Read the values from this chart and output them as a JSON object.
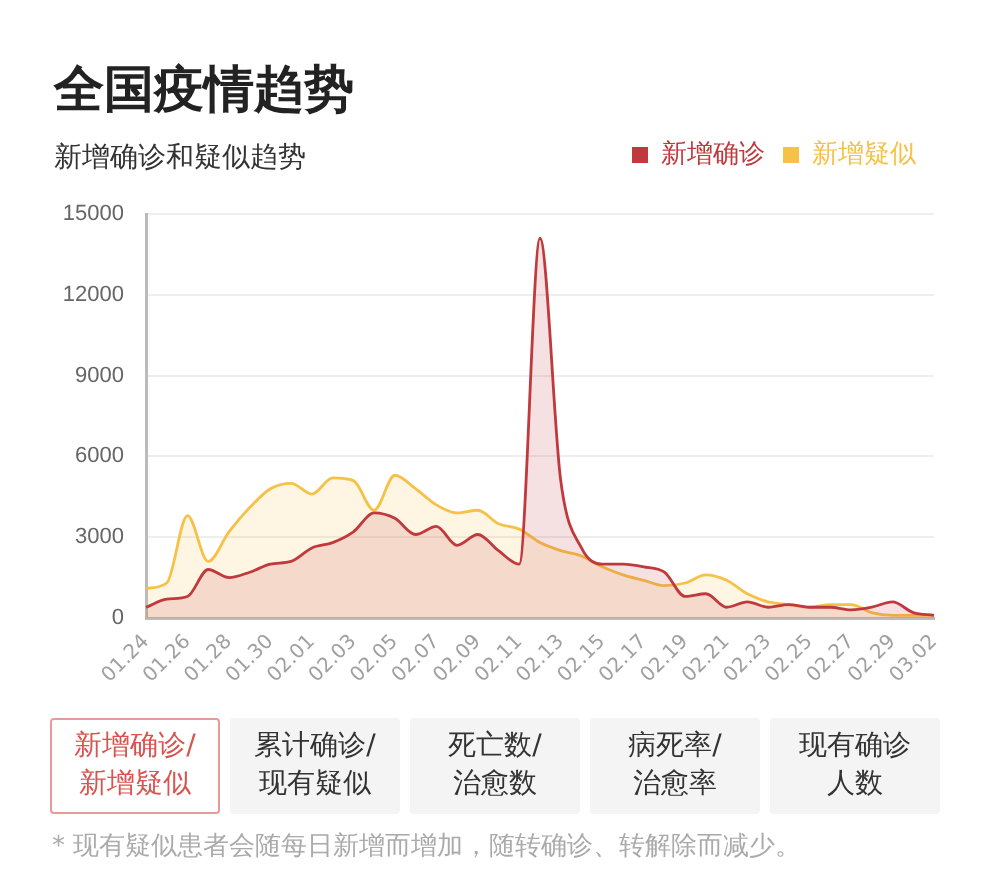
{
  "chart_data": {
    "type": "area",
    "title": "全国疫情趋势",
    "subtitle": "新增确诊和疑似趋势",
    "categories": [
      "01.24",
      null,
      "01.26",
      null,
      "01.28",
      null,
      "01.30",
      null,
      "02.01",
      null,
      "02.03",
      null,
      "02.05",
      null,
      "02.07",
      null,
      "02.09",
      null,
      "02.11",
      null,
      "02.13",
      null,
      "02.15",
      null,
      "02.17",
      null,
      "02.19",
      null,
      "02.21",
      null,
      "02.23",
      null,
      "02.25",
      null,
      "02.27",
      null,
      "02.29",
      null,
      "03.02"
    ],
    "series": [
      {
        "name": "新增确诊",
        "color": "#c0393d",
        "values": [
          400,
          700,
          800,
          1800,
          1500,
          1700,
          2000,
          2100,
          2600,
          2800,
          3200,
          3900,
          3700,
          3100,
          3400,
          2700,
          3100,
          2500,
          2000,
          14100,
          5100,
          2600,
          2000,
          2000,
          1900,
          1700,
          800,
          900,
          400,
          600,
          400,
          500,
          400,
          400,
          300,
          400,
          600,
          200,
          100
        ]
      },
      {
        "name": "新增疑似",
        "color": "#f5c146",
        "values": [
          1100,
          1300,
          3800,
          2100,
          3200,
          4100,
          4800,
          5000,
          4600,
          5200,
          5100,
          4000,
          5300,
          4800,
          4200,
          3900,
          4000,
          3500,
          3300,
          2800,
          2500,
          2300,
          1900,
          1600,
          1400,
          1200,
          1300,
          1600,
          1400,
          900,
          600,
          500,
          400,
          500,
          500,
          200,
          100,
          100,
          100
        ]
      }
    ],
    "ylim": [
      0,
      15000
    ],
    "yticks": [
      0,
      3000,
      6000,
      9000,
      12000,
      15000
    ],
    "grid": "y",
    "legend": "top right",
    "marker": "none",
    "annotations": [
      "新增确诊/新增疑似",
      "累计确诊/现有疑似",
      "死亡数/治愈数",
      "病死率/治愈率",
      "现有确诊人数",
      "* 现有疑似患者会随每日新增而增加，随转确诊、转解除而减少。"
    ]
  }
}
